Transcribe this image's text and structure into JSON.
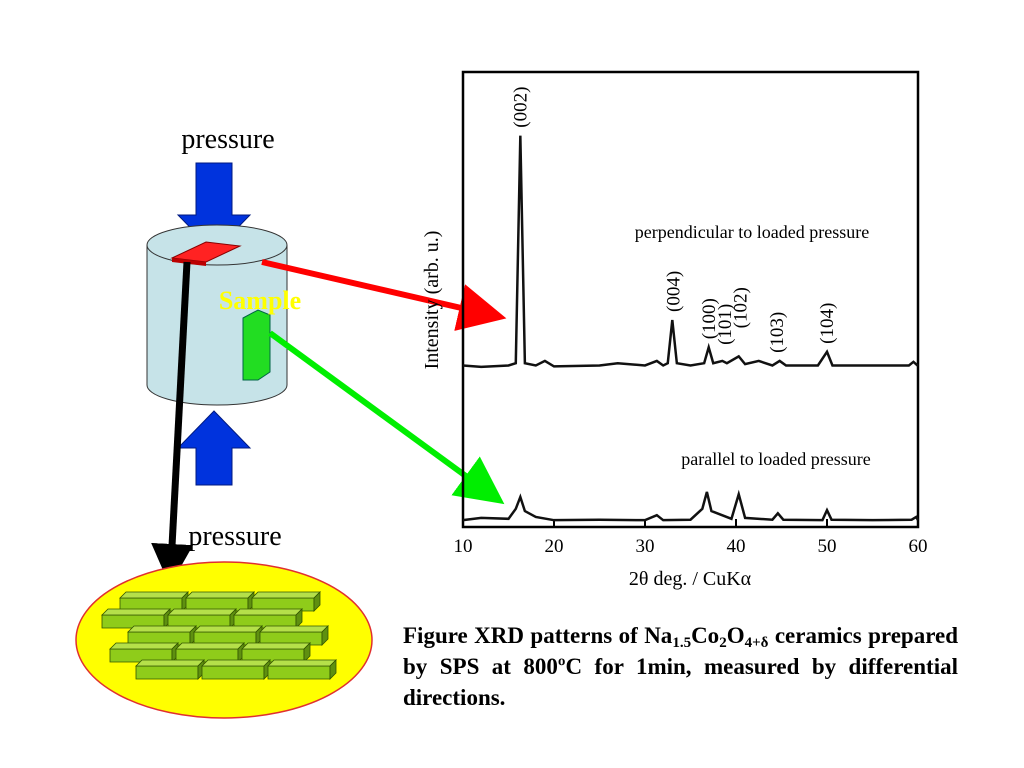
{
  "chart_data": {
    "type": "line",
    "xlabel": "2θ deg. / CuKα",
    "ylabel": "Intensity (arb. u.)",
    "xlim": [
      10,
      60
    ],
    "xticks": [
      10,
      20,
      30,
      40,
      50,
      60
    ],
    "ylim": [
      0,
      100
    ],
    "series": [
      {
        "name": "perpendicular to loaded pressure",
        "color": "#111111",
        "x": [
          10,
          12,
          15,
          15.8,
          16.3,
          16.8,
          18,
          19,
          20,
          25,
          27,
          30,
          31.3,
          32,
          32.5,
          33,
          33.5,
          35,
          36.5,
          37,
          37.5,
          38.5,
          39,
          40.3,
          41,
          42.5,
          44,
          44.8,
          45.5,
          49,
          50,
          50.6,
          55,
          59,
          59.5,
          60
        ],
        "values": [
          35.5,
          35.2,
          35.5,
          36,
          86,
          36,
          35.5,
          36.5,
          35.3,
          35.5,
          36,
          35.5,
          36.5,
          35.5,
          36,
          45.5,
          36,
          35.5,
          36,
          39.5,
          36,
          36.5,
          36,
          37.5,
          35.8,
          36.5,
          35.5,
          36.5,
          35.5,
          35.5,
          38.5,
          35.5,
          35.5,
          35.5,
          36.3,
          35.4
        ]
      },
      {
        "name": "parallel to loaded pressure",
        "color": "#111111",
        "x": [
          10,
          12,
          15,
          15.8,
          16.3,
          16.8,
          18,
          20,
          25,
          30,
          31.3,
          32,
          35,
          36.3,
          36.8,
          37.3,
          39.5,
          40.3,
          41,
          44,
          44.6,
          45.2,
          49.5,
          50,
          50.5,
          55,
          59.3,
          59.8,
          60
        ],
        "values": [
          1.5,
          2,
          1.8,
          4,
          6.6,
          3.5,
          2.2,
          1.5,
          1.6,
          1.5,
          2.6,
          1.5,
          1.6,
          4,
          7.7,
          3.5,
          1.8,
          7.2,
          2,
          1.6,
          3,
          1.6,
          1.5,
          3.7,
          1.6,
          1.5,
          1.6,
          2.2,
          1.5
        ]
      }
    ],
    "annotations": [
      {
        "text": "(002)",
        "x": 16.2
      },
      {
        "text": "(004)",
        "x": 33
      },
      {
        "text": "(100)",
        "x": 36.9
      },
      {
        "text": "(101)",
        "x": 38.7
      },
      {
        "text": "(102)",
        "x": 40.4
      },
      {
        "text": "(103)",
        "x": 44.4
      },
      {
        "text": "(104)",
        "x": 49.9
      }
    ]
  },
  "diagram": {
    "top_label": "pressure",
    "bottom_label": "pressure",
    "sample_label": "Sample"
  },
  "caption": {
    "parts": [
      "Figure XRD patterns of Na",
      "1.5",
      "Co",
      "2",
      "O",
      "4+δ",
      " ceramics prepared by SPS at 800ºC for 1min, measured by differential directions."
    ]
  }
}
